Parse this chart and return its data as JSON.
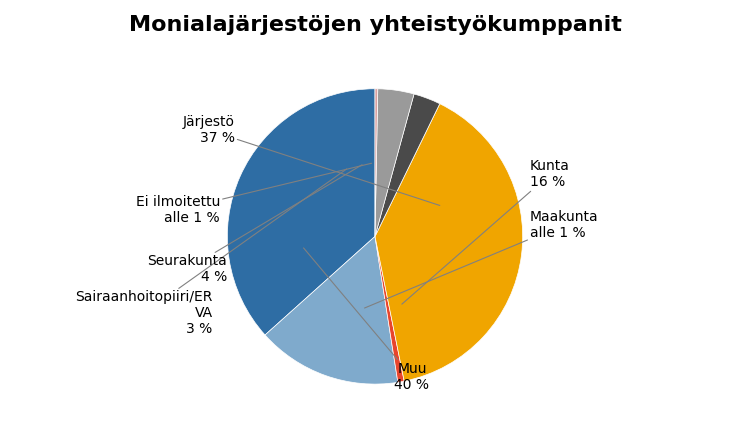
{
  "title": "Monialajärjestöjen yhteistyökumppanit",
  "slices": [
    {
      "label": "Järjestö\n37 %",
      "value": 37,
      "color": "#2E6DA4",
      "label_pos": "outside_left_top"
    },
    {
      "label": "Kunta\n16 %",
      "value": 16,
      "color": "#7FAACC",
      "label_pos": "outside_right_top"
    },
    {
      "label": "Maakunta\nalle 1 %",
      "value": 0.7,
      "color": "#E8452C",
      "label_pos": "outside_right_mid"
    },
    {
      "label": "Muu\n40 %",
      "value": 40,
      "color": "#F0A500",
      "label_pos": "outside_bottom"
    },
    {
      "label": "Sairaanhoitopiiri/ER\nVA\n3 %",
      "value": 3,
      "color": "#4A4A4A",
      "label_pos": "outside_left_bottom2"
    },
    {
      "label": "Seurakunta\n4 %",
      "value": 4,
      "color": "#9A9A9A",
      "label_pos": "outside_left_bottom"
    },
    {
      "label": "Ei ilmoitettu\nalle 1 %",
      "value": 0.3,
      "color": "#D9A0A0",
      "label_pos": "outside_left_mid"
    }
  ],
  "title_fontsize": 16,
  "label_fontsize": 10,
  "background_color": "#ffffff",
  "startangle": 90
}
